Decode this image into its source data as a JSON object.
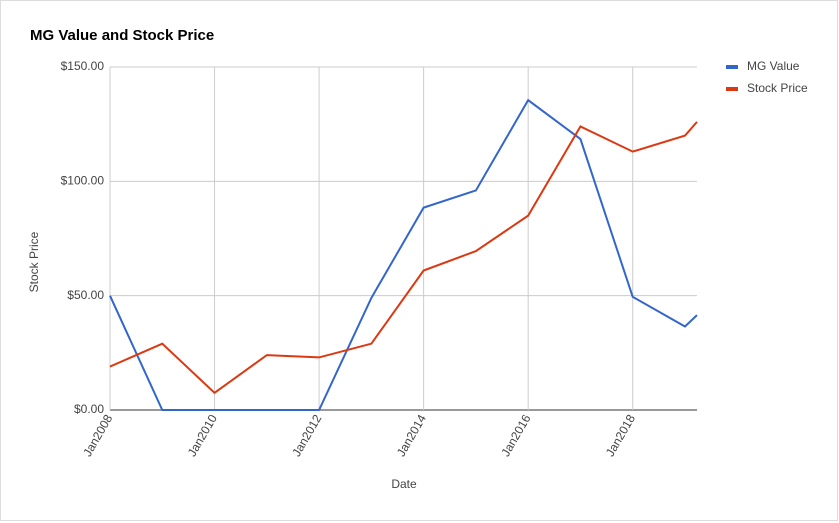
{
  "chart_data": {
    "type": "line",
    "title": "MG Value and Stock Price",
    "x_label": "Date",
    "y_label": "Stock Price",
    "x": [
      2008,
      2009,
      2010,
      2011,
      2012,
      2013,
      2014,
      2015,
      2016,
      2017,
      2018,
      2019,
      2019.23
    ],
    "series": [
      {
        "name": "MG Value",
        "color": "#3366cc",
        "values": [
          50,
          0,
          0,
          0,
          0,
          49,
          88.5,
          96,
          135.5,
          118.5,
          49.5,
          36.5,
          41.5
        ]
      },
      {
        "name": "Stock Price",
        "color": "#dc3912",
        "values": [
          19,
          29,
          7.5,
          24,
          23,
          29,
          61,
          69.5,
          85,
          124,
          113,
          120,
          126
        ]
      }
    ],
    "xlim": [
      2008,
      2019.23
    ],
    "xticks": [
      {
        "value": 2008,
        "label": "Jan2008"
      },
      {
        "value": 2010,
        "label": "Jan2010"
      },
      {
        "value": 2012,
        "label": "Jan2012"
      },
      {
        "value": 2014,
        "label": "Jan2014"
      },
      {
        "value": 2016,
        "label": "Jan2016"
      },
      {
        "value": 2018,
        "label": "Jan2018"
      }
    ],
    "ylim": [
      0,
      150
    ],
    "yticks": [
      {
        "value": 0,
        "label": "$0.00"
      },
      {
        "value": 50,
        "label": "$50.00"
      },
      {
        "value": 100,
        "label": "$100.00"
      },
      {
        "value": 150,
        "label": "$150.00"
      }
    ],
    "grid": true,
    "legend": "right"
  }
}
